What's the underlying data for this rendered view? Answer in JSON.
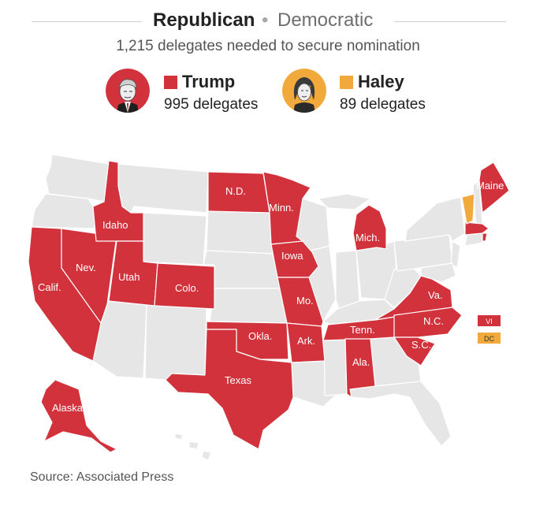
{
  "header": {
    "tab_active": "Republican",
    "tab_separator": "•",
    "tab_inactive": "Democratic",
    "subtitle": "1,215 delegates needed to secure nomination"
  },
  "candidates": [
    {
      "name": "Trump",
      "delegates": "995 delegates",
      "color": "#d1323c",
      "portrait_icon": "trump-portrait-icon"
    },
    {
      "name": "Haley",
      "delegates": "89 delegates",
      "color": "#f2a93b",
      "portrait_icon": "haley-portrait-icon"
    }
  ],
  "colors": {
    "trump": "#d1323c",
    "haley": "#f2a93b",
    "no_result": "#e6e6e6",
    "border": "#ffffff"
  },
  "map": {
    "state_labels": {
      "calif": "Calif.",
      "nev": "Nev.",
      "idaho": "Idaho",
      "utah": "Utah",
      "colo": "Colo.",
      "nd": "N.D.",
      "minn": "Minn.",
      "iowa": "Iowa",
      "mo": "Mo.",
      "okla": "Okla.",
      "ark": "Ark.",
      "texas": "Texas",
      "tenn": "Tenn.",
      "ala": "Ala.",
      "nc": "N.C.",
      "sc": "S.C.",
      "va": "Va.",
      "mich": "Mich.",
      "maine": "Maine",
      "alaska": "Alaska"
    },
    "territories": {
      "vi": "VI",
      "dc": "DC"
    }
  },
  "footer": {
    "source": "Source: Associated Press"
  }
}
